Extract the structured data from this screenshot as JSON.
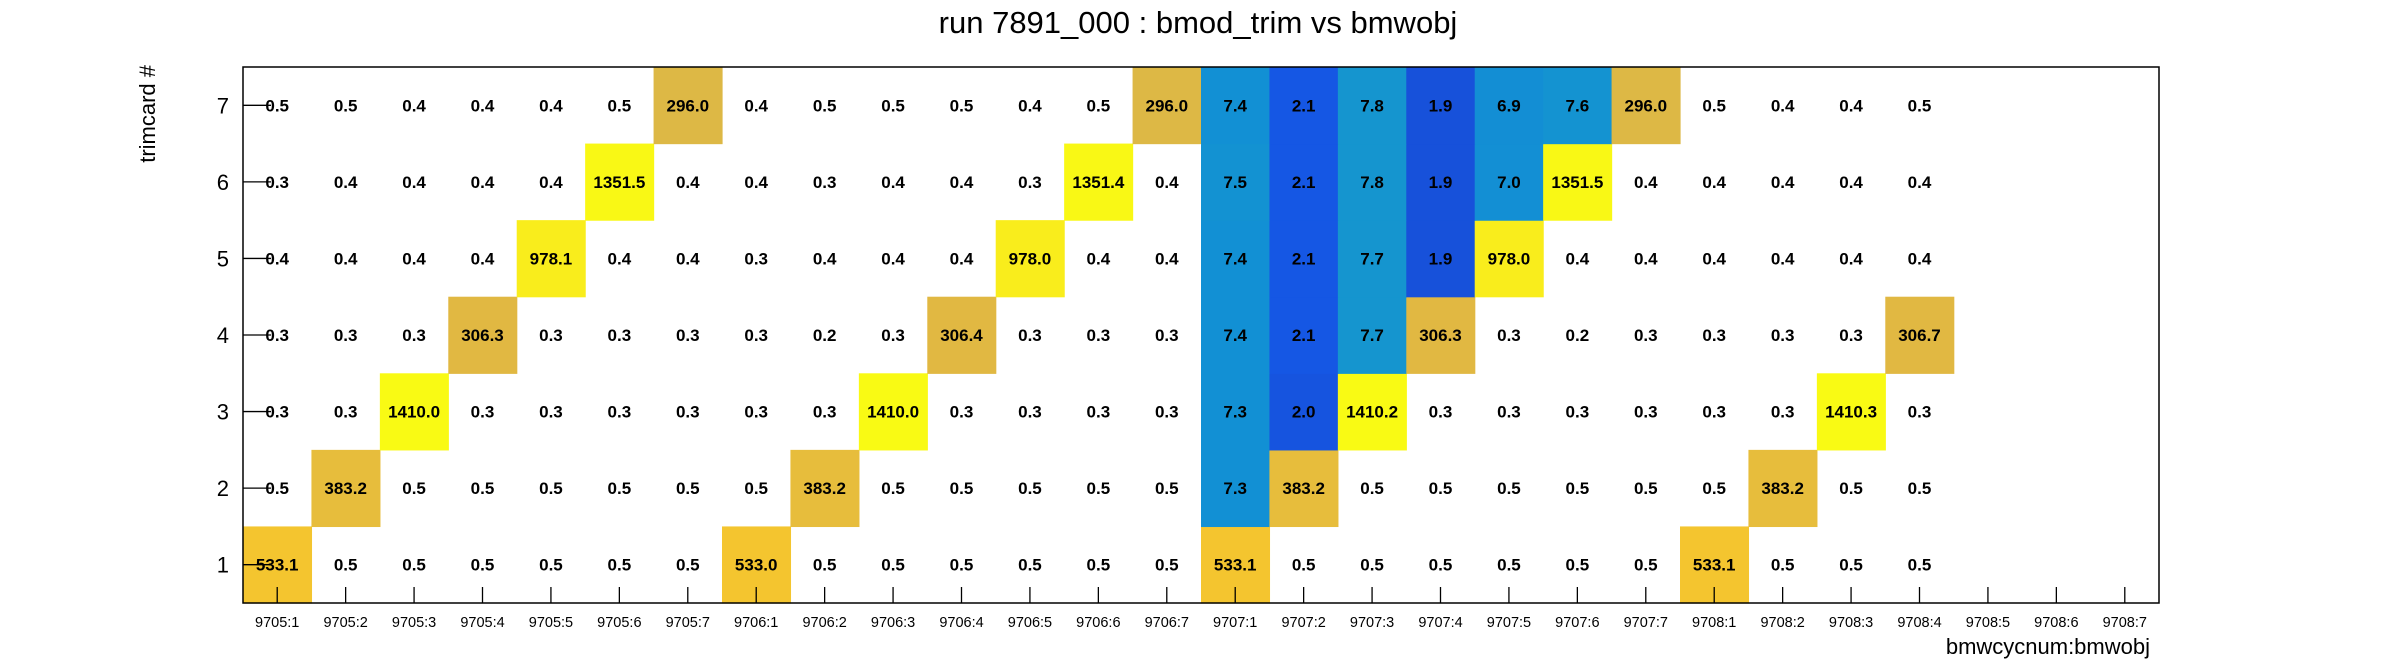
{
  "chart_data": {
    "type": "heatmap",
    "title": "run 7891_000 : bmod_trim vs bmwobj",
    "xlabel": "bmwcycnum:bmwobj",
    "ylabel": "trimcard #",
    "x_categories": [
      "9705:1",
      "9705:2",
      "9705:3",
      "9705:4",
      "9705:5",
      "9705:6",
      "9705:7",
      "9706:1",
      "9706:2",
      "9706:3",
      "9706:4",
      "9706:5",
      "9706:6",
      "9706:7",
      "9707:1",
      "9707:2",
      "9707:3",
      "9707:4",
      "9707:5",
      "9707:6",
      "9707:7",
      "9708:1",
      "9708:2",
      "9708:3",
      "9708:4",
      "9708:5",
      "9708:6",
      "9708:7"
    ],
    "y_categories": [
      "1",
      "2",
      "3",
      "4",
      "5",
      "6",
      "7"
    ],
    "values": [
      [
        533.1,
        0.5,
        0.5,
        0.5,
        0.5,
        0.5,
        0.5,
        533.0,
        0.5,
        0.5,
        0.5,
        0.5,
        0.5,
        0.5,
        533.1,
        0.5,
        0.5,
        0.5,
        0.5,
        0.5,
        0.5,
        533.1,
        0.5,
        0.5,
        0.5,
        null,
        null,
        null
      ],
      [
        0.5,
        383.2,
        0.5,
        0.5,
        0.5,
        0.5,
        0.5,
        0.5,
        383.2,
        0.5,
        0.5,
        0.5,
        0.5,
        0.5,
        7.3,
        383.2,
        0.5,
        0.5,
        0.5,
        0.5,
        0.5,
        0.5,
        383.2,
        0.5,
        0.5,
        null,
        null,
        null
      ],
      [
        0.3,
        0.3,
        1410.0,
        0.3,
        0.3,
        0.3,
        0.3,
        0.3,
        0.3,
        1410.0,
        0.3,
        0.3,
        0.3,
        0.3,
        7.3,
        2.0,
        1410.2,
        0.3,
        0.3,
        0.3,
        0.3,
        0.3,
        0.3,
        1410.3,
        0.3,
        null,
        null,
        null
      ],
      [
        0.3,
        0.3,
        0.3,
        306.3,
        0.3,
        0.3,
        0.3,
        0.3,
        0.2,
        0.3,
        306.4,
        0.3,
        0.3,
        0.3,
        7.4,
        2.1,
        7.7,
        306.3,
        0.3,
        0.2,
        0.3,
        0.3,
        0.3,
        0.3,
        306.7,
        null,
        null,
        null
      ],
      [
        0.4,
        0.4,
        0.4,
        0.4,
        978.1,
        0.4,
        0.4,
        0.3,
        0.4,
        0.4,
        0.4,
        978.0,
        0.4,
        0.4,
        7.4,
        2.1,
        7.7,
        1.9,
        978.0,
        0.4,
        0.4,
        0.4,
        0.4,
        0.4,
        0.4,
        null,
        null,
        null
      ],
      [
        0.3,
        0.4,
        0.4,
        0.4,
        0.4,
        1351.5,
        0.4,
        0.4,
        0.3,
        0.4,
        0.4,
        0.3,
        1351.4,
        0.4,
        7.5,
        2.1,
        7.8,
        1.9,
        7.0,
        1351.5,
        0.4,
        0.4,
        0.4,
        0.4,
        0.4,
        null,
        null,
        null
      ],
      [
        0.5,
        0.5,
        0.4,
        0.4,
        0.4,
        0.5,
        296.0,
        0.4,
        0.5,
        0.5,
        0.5,
        0.4,
        0.5,
        296.0,
        7.4,
        2.1,
        7.8,
        1.9,
        6.9,
        7.6,
        296.0,
        0.5,
        0.4,
        0.4,
        0.5,
        null,
        null,
        null
      ]
    ],
    "labels": [
      [
        "533.1",
        "0.5",
        "0.5",
        "0.5",
        "0.5",
        "0.5",
        "0.5",
        "533.0",
        "0.5",
        "0.5",
        "0.5",
        "0.5",
        "0.5",
        "0.5",
        "533.1",
        "0.5",
        "0.5",
        "0.5",
        "0.5",
        "0.5",
        "0.5",
        "533.1",
        "0.5",
        "0.5",
        "0.5",
        null,
        null,
        null
      ],
      [
        "0.5",
        "383.2",
        "0.5",
        "0.5",
        "0.5",
        "0.5",
        "0.5",
        "0.5",
        "383.2",
        "0.5",
        "0.5",
        "0.5",
        "0.5",
        "0.5",
        "7.3",
        "383.2",
        "0.5",
        "0.5",
        "0.5",
        "0.5",
        "0.5",
        "0.5",
        "383.2",
        "0.5",
        "0.5",
        null,
        null,
        null
      ],
      [
        "0.3",
        "0.3",
        "1410.0",
        "0.3",
        "0.3",
        "0.3",
        "0.3",
        "0.3",
        "0.3",
        "1410.0",
        "0.3",
        "0.3",
        "0.3",
        "0.3",
        "7.3",
        "2.0",
        "1410.2",
        "0.3",
        "0.3",
        "0.3",
        "0.3",
        "0.3",
        "0.3",
        "1410.3",
        "0.3",
        null,
        null,
        null
      ],
      [
        "0.3",
        "0.3",
        "0.3",
        "306.3",
        "0.3",
        "0.3",
        "0.3",
        "0.3",
        "0.2",
        "0.3",
        "306.4",
        "0.3",
        "0.3",
        "0.3",
        "7.4",
        "2.1",
        "7.7",
        "306.3",
        "0.3",
        "0.2",
        "0.3",
        "0.3",
        "0.3",
        "0.3",
        "306.7",
        null,
        null,
        null
      ],
      [
        "0.4",
        "0.4",
        "0.4",
        "0.4",
        "978.1",
        "0.4",
        "0.4",
        "0.3",
        "0.4",
        "0.4",
        "0.4",
        "978.0",
        "0.4",
        "0.4",
        "7.4",
        "2.1",
        "7.7",
        "1.9",
        "978.0",
        "0.4",
        "0.4",
        "0.4",
        "0.4",
        "0.4",
        "0.4",
        null,
        null,
        null
      ],
      [
        "0.3",
        "0.4",
        "0.4",
        "0.4",
        "0.4",
        "1351.5",
        "0.4",
        "0.4",
        "0.3",
        "0.4",
        "0.4",
        "0.3",
        "1351.4",
        "0.4",
        "7.5",
        "2.1",
        "7.8",
        "1.9",
        "7.0",
        "1351.5",
        "0.4",
        "0.4",
        "0.4",
        "0.4",
        "0.4",
        null,
        null,
        null
      ],
      [
        "0.5",
        "0.5",
        "0.4",
        "0.4",
        "0.4",
        "0.5",
        "296.0",
        "0.4",
        "0.5",
        "0.5",
        "0.5",
        "0.4",
        "0.5",
        "296.0",
        "7.4",
        "2.1",
        "7.8",
        "1.9",
        "6.9",
        "7.6",
        "296.0",
        "0.5",
        "0.4",
        "0.4",
        "0.5",
        null,
        null,
        null
      ]
    ],
    "color_scale": {
      "no_fill_below": 1.0,
      "stops": [
        {
          "value": 1.5,
          "color": "#1a44c6"
        },
        {
          "value": 2.1,
          "color": "#1557e4"
        },
        {
          "value": 6.0,
          "color": "#148bd3"
        },
        {
          "value": 7.4,
          "color": "#1290d4"
        },
        {
          "value": 7.7,
          "color": "#1595cf"
        },
        {
          "value": 300,
          "color": "#e0b843"
        },
        {
          "value": 530,
          "color": "#f4c52f"
        },
        {
          "value": 950,
          "color": "#f9ec1d"
        },
        {
          "value": 1410,
          "color": "#f9fa14"
        }
      ]
    },
    "grid": false,
    "legend": "none"
  }
}
